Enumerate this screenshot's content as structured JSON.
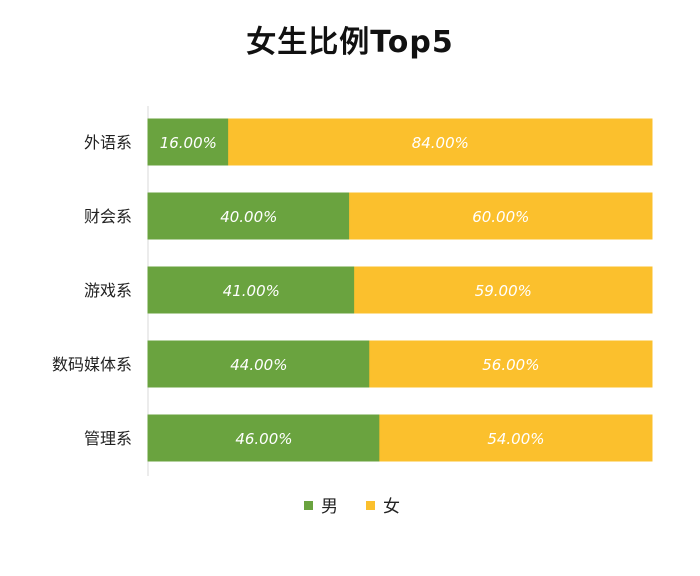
{
  "chart_data": {
    "type": "bar",
    "orientation": "horizontal",
    "stacked": true,
    "title": "女生比例Top5",
    "categories": [
      "外语系",
      "财会系",
      "游戏系",
      "数码媒体系",
      "管理系"
    ],
    "series": [
      {
        "name": "男",
        "color": "#6aa33f",
        "values": [
          16.0,
          40.0,
          41.0,
          44.0,
          46.0
        ],
        "labels": [
          "16.00%",
          "40.00%",
          "41.00%",
          "44.00%",
          "46.00%"
        ]
      },
      {
        "name": "女",
        "color": "#fbc02d",
        "values": [
          84.0,
          60.0,
          59.0,
          56.0,
          54.0
        ],
        "labels": [
          "84.00%",
          "60.00%",
          "59.00%",
          "56.00%",
          "54.00%"
        ]
      }
    ],
    "xlim": [
      0,
      100
    ],
    "grid": false,
    "legend_position": "bottom"
  }
}
